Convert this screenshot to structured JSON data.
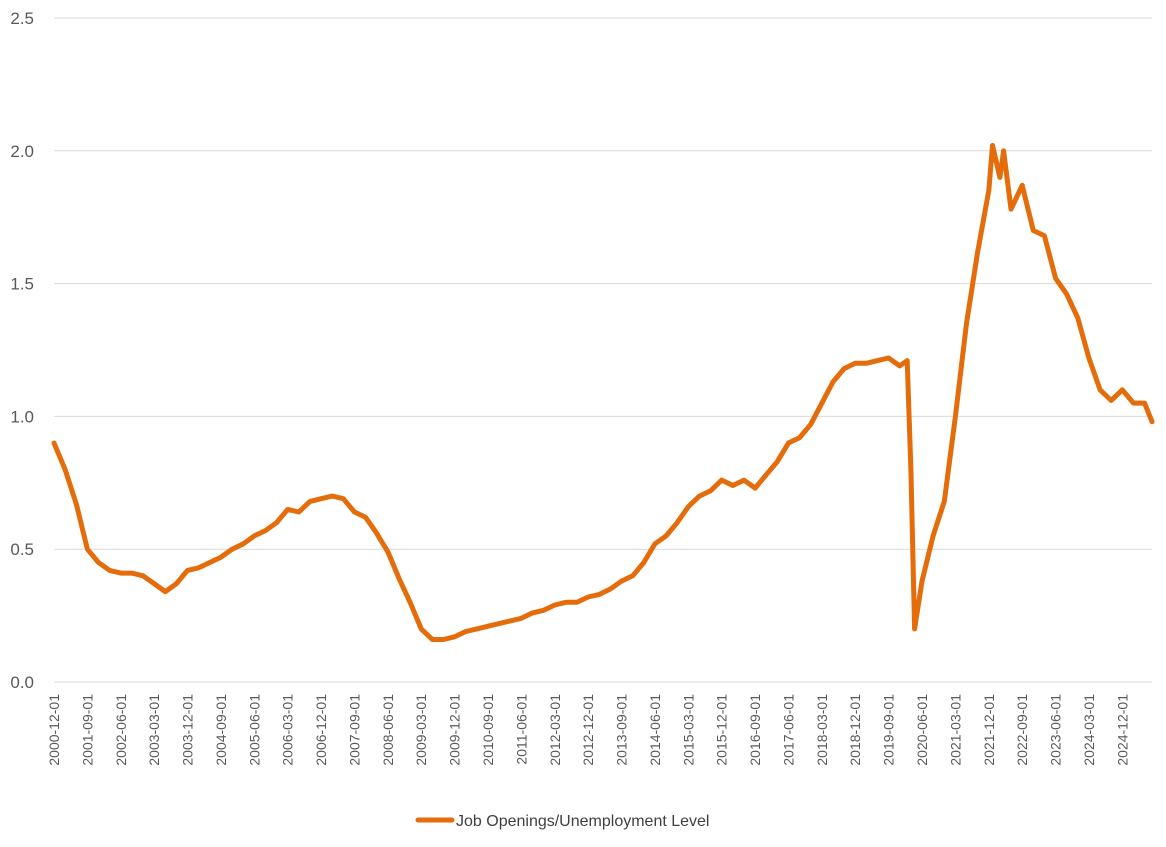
{
  "chart_data": {
    "type": "line",
    "title": "",
    "xlabel": "",
    "ylabel": "",
    "ylim": [
      0,
      2.5
    ],
    "y_ticks": [
      "0.0",
      "0.5",
      "1.0",
      "1.5",
      "2.0",
      "2.5"
    ],
    "x_tick_labels": [
      "2000-12-01",
      "2001-09-01",
      "2002-06-01",
      "2003-03-01",
      "2003-12-01",
      "2004-09-01",
      "2005-06-01",
      "2006-03-01",
      "2006-12-01",
      "2007-09-01",
      "2008-06-01",
      "2009-03-01",
      "2009-12-01",
      "2010-09-01",
      "2011-06-01",
      "2012-03-01",
      "2012-12-01",
      "2013-09-01",
      "2014-06-01",
      "2015-03-01",
      "2015-12-01",
      "2016-09-01",
      "2017-06-01",
      "2018-03-01",
      "2018-12-01",
      "2019-09-01",
      "2020-06-01",
      "2021-03-01",
      "2021-12-01",
      "2022-09-01",
      "2023-06-01",
      "2024-03-01",
      "2024-12-01"
    ],
    "x_start": "2000-12-01",
    "x_end": "2025-08-01",
    "grid": "horizontal",
    "legend_position": "bottom",
    "colors": {
      "line": "#E46C0A",
      "grid": "#D9D9D9"
    },
    "series": [
      {
        "name": "Job Openings/Unemployment Level",
        "x": [
          "2000-12-01",
          "2001-03-01",
          "2001-06-01",
          "2001-09-01",
          "2001-12-01",
          "2002-03-01",
          "2002-06-01",
          "2002-09-01",
          "2002-12-01",
          "2003-03-01",
          "2003-06-01",
          "2003-09-01",
          "2003-12-01",
          "2004-03-01",
          "2004-06-01",
          "2004-09-01",
          "2004-12-01",
          "2005-03-01",
          "2005-06-01",
          "2005-09-01",
          "2005-12-01",
          "2006-03-01",
          "2006-06-01",
          "2006-09-01",
          "2006-12-01",
          "2007-03-01",
          "2007-06-01",
          "2007-09-01",
          "2007-12-01",
          "2008-03-01",
          "2008-06-01",
          "2008-09-01",
          "2008-12-01",
          "2009-03-01",
          "2009-06-01",
          "2009-09-01",
          "2009-12-01",
          "2010-03-01",
          "2010-06-01",
          "2010-09-01",
          "2010-12-01",
          "2011-03-01",
          "2011-06-01",
          "2011-09-01",
          "2011-12-01",
          "2012-03-01",
          "2012-06-01",
          "2012-09-01",
          "2012-12-01",
          "2013-03-01",
          "2013-06-01",
          "2013-09-01",
          "2013-12-01",
          "2014-03-01",
          "2014-06-01",
          "2014-09-01",
          "2014-12-01",
          "2015-03-01",
          "2015-06-01",
          "2015-09-01",
          "2015-12-01",
          "2016-03-01",
          "2016-06-01",
          "2016-09-01",
          "2016-12-01",
          "2017-03-01",
          "2017-06-01",
          "2017-09-01",
          "2017-12-01",
          "2018-03-01",
          "2018-06-01",
          "2018-09-01",
          "2018-12-01",
          "2019-03-01",
          "2019-06-01",
          "2019-09-01",
          "2019-12-01",
          "2020-02-01",
          "2020-03-01",
          "2020-04-01",
          "2020-06-01",
          "2020-09-01",
          "2020-12-01",
          "2021-03-01",
          "2021-06-01",
          "2021-09-01",
          "2021-12-01",
          "2022-01-01",
          "2022-03-01",
          "2022-04-01",
          "2022-06-01",
          "2022-09-01",
          "2022-12-01",
          "2023-03-01",
          "2023-06-01",
          "2023-09-01",
          "2023-12-01",
          "2024-03-01",
          "2024-06-01",
          "2024-09-01",
          "2024-12-01",
          "2025-03-01",
          "2025-06-01",
          "2025-08-01"
        ],
        "values": [
          0.9,
          0.8,
          0.67,
          0.5,
          0.45,
          0.42,
          0.41,
          0.41,
          0.4,
          0.37,
          0.34,
          0.37,
          0.42,
          0.43,
          0.45,
          0.47,
          0.5,
          0.52,
          0.55,
          0.57,
          0.6,
          0.65,
          0.64,
          0.68,
          0.69,
          0.7,
          0.69,
          0.64,
          0.62,
          0.56,
          0.49,
          0.39,
          0.3,
          0.2,
          0.16,
          0.16,
          0.17,
          0.19,
          0.2,
          0.21,
          0.22,
          0.23,
          0.24,
          0.26,
          0.27,
          0.29,
          0.3,
          0.3,
          0.32,
          0.33,
          0.35,
          0.38,
          0.4,
          0.45,
          0.52,
          0.55,
          0.6,
          0.66,
          0.7,
          0.72,
          0.76,
          0.74,
          0.76,
          0.73,
          0.78,
          0.83,
          0.9,
          0.92,
          0.97,
          1.05,
          1.13,
          1.18,
          1.2,
          1.2,
          1.21,
          1.22,
          1.19,
          1.21,
          0.8,
          0.2,
          0.38,
          0.55,
          0.68,
          1.0,
          1.35,
          1.62,
          1.85,
          2.02,
          1.9,
          2.0,
          1.78,
          1.87,
          1.7,
          1.68,
          1.52,
          1.46,
          1.37,
          1.22,
          1.1,
          1.06,
          1.1,
          1.05,
          1.05,
          0.98
        ]
      }
    ]
  }
}
